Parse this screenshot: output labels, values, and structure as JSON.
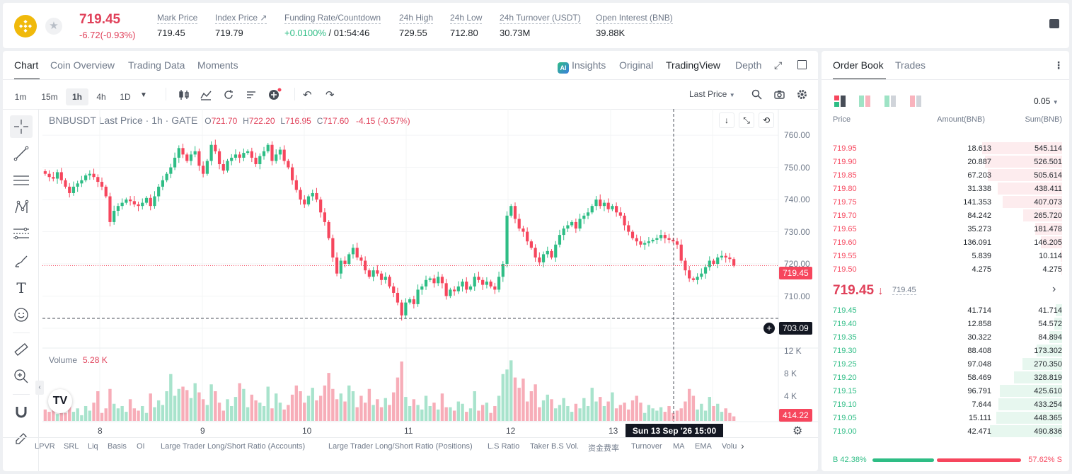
{
  "ticker": {
    "last_price": "719.45",
    "change": "-6.72(-0.93%)",
    "stats": [
      {
        "label": "Mark Price",
        "value": "719.45"
      },
      {
        "label": "Index Price ↗",
        "value": "719.79"
      },
      {
        "label": "Funding Rate/Countdown",
        "value_green": "+0.0100%",
        "value": " / 01:54:46"
      },
      {
        "label": "24h High",
        "value": "729.55"
      },
      {
        "label": "24h Low",
        "value": "712.80"
      },
      {
        "label": "24h Turnover (USDT)",
        "value": "30.73M"
      },
      {
        "label": "Open Interest (BNB)",
        "value": "39.88K"
      }
    ]
  },
  "chart_tabs": [
    "Chart",
    "Coin Overview",
    "Trading Data",
    "Moments"
  ],
  "view_tabs": {
    "insights": "Insights",
    "original": "Original",
    "tradingview": "TradingView",
    "depth": "Depth"
  },
  "timeframes": [
    "1m",
    "15m",
    "1h",
    "4h",
    "1D"
  ],
  "price_type": "Last Price",
  "legend": {
    "symbol": "BNBUSDT Last Price · 1h · GATE",
    "o_key": "O",
    "o": "721.70",
    "h_key": "H",
    "h": "722.20",
    "l_key": "L",
    "l": "716.95",
    "c_key": "C",
    "c": "717.60",
    "chg": "-4.15 (-0.57%)"
  },
  "price_axis": [
    "760.00",
    "750.00",
    "740.00",
    "730.00",
    "720.00",
    "710.00",
    "700.00"
  ],
  "price_tags": {
    "last": "719.45",
    "cross": "703.09",
    "volume": "414.22"
  },
  "volume_axis": [
    "12 K",
    "8 K",
    "4 K"
  ],
  "volume_legend": {
    "label": "Volume",
    "value": "5.28 K"
  },
  "time_axis": [
    "8",
    "9",
    "10",
    "11",
    "12",
    "13"
  ],
  "crosshair_date": "Sun 13 Sep '26   15:00",
  "indicators": [
    "LPVR",
    "SRL",
    "Liq",
    "Basis",
    "OI",
    "Large Trader Long/Short Ratio (Accounts)",
    "Large Trader Long/Short Ratio (Positions)",
    "L.S Ratio",
    "Taker B.S Vol.",
    "资金费率",
    "Turnover",
    "MA",
    "EMA",
    "Volu"
  ],
  "order_book": {
    "tabs": [
      "Order Book",
      "Trades"
    ],
    "precision": "0.05",
    "headers": {
      "price": "Price",
      "amount": "Amount(BNB)",
      "sum": "Sum(BNB)"
    },
    "asks": [
      {
        "price": "719.95",
        "amount": "18.613",
        "sum": "545.114"
      },
      {
        "price": "719.90",
        "amount": "20.887",
        "sum": "526.501"
      },
      {
        "price": "719.85",
        "amount": "67.203",
        "sum": "505.614"
      },
      {
        "price": "719.80",
        "amount": "31.338",
        "sum": "438.411"
      },
      {
        "price": "719.75",
        "amount": "141.353",
        "sum": "407.073"
      },
      {
        "price": "719.70",
        "amount": "84.242",
        "sum": "265.720"
      },
      {
        "price": "719.65",
        "amount": "35.273",
        "sum": "181.478"
      },
      {
        "price": "719.60",
        "amount": "136.091",
        "sum": "146.205"
      },
      {
        "price": "719.55",
        "amount": "5.839",
        "sum": "10.114"
      },
      {
        "price": "719.50",
        "amount": "4.275",
        "sum": "4.275"
      }
    ],
    "mid_price": "719.45",
    "mid_arrow": "↓",
    "mark_price": "719.45",
    "bids": [
      {
        "price": "719.45",
        "amount": "41.714",
        "sum": "41.714"
      },
      {
        "price": "719.40",
        "amount": "12.858",
        "sum": "54.572"
      },
      {
        "price": "719.35",
        "amount": "30.322",
        "sum": "84.894"
      },
      {
        "price": "719.30",
        "amount": "88.408",
        "sum": "173.302"
      },
      {
        "price": "719.25",
        "amount": "97.048",
        "sum": "270.350"
      },
      {
        "price": "719.20",
        "amount": "58.469",
        "sum": "328.819"
      },
      {
        "price": "719.15",
        "amount": "96.791",
        "sum": "425.610"
      },
      {
        "price": "719.10",
        "amount": "7.644",
        "sum": "433.254"
      },
      {
        "price": "719.05",
        "amount": "15.111",
        "sum": "448.365"
      },
      {
        "price": "719.00",
        "amount": "42.471",
        "sum": "490.836"
      }
    ],
    "buy_label": "B",
    "buy_pct": "42.38%",
    "sell_label": "S",
    "sell_pct": "57.62%",
    "buy_ratio": 0.4238
  },
  "colors": {
    "up": "#2ebd85",
    "down": "#f6465d",
    "accent": "#f0b90b"
  },
  "chart_data": {
    "type": "candlestick",
    "interval": "1h",
    "ylim": [
      700,
      762
    ],
    "closes": [
      748.0,
      747.0,
      746.5,
      748.5,
      746.0,
      744.0,
      742.0,
      744.0,
      745.0,
      746.0,
      747.5,
      748.0,
      747.0,
      745.5,
      744.0,
      741.0,
      733.0,
      736.5,
      738.0,
      739.0,
      740.0,
      739.5,
      738.5,
      738.0,
      739.0,
      740.5,
      738.0,
      741.0,
      744.0,
      746.0,
      748.0,
      750.0,
      753.0,
      756.0,
      754.0,
      752.0,
      754.0,
      755.0,
      750.5,
      748.0,
      752.0,
      757.0,
      755.0,
      751.0,
      749.0,
      752.0,
      753.0,
      754.0,
      753.0,
      754.5,
      755.0,
      753.0,
      751.0,
      753.5,
      755.0,
      757.0,
      752.0,
      754.0,
      755.5,
      752.0,
      750.0,
      746.0,
      743.0,
      740.0,
      738.5,
      741.0,
      742.0,
      740.0,
      736.0,
      733.0,
      728.0,
      722.0,
      717.0,
      721.0,
      720.0,
      723.0,
      725.0,
      722.0,
      721.0,
      718.0,
      716.0,
      718.0,
      717.0,
      715.0,
      716.0,
      713.0,
      711.0,
      708.0,
      704.0,
      708.0,
      709.0,
      707.5,
      712.0,
      713.0,
      715.0,
      715.5,
      714.0,
      716.0,
      714.0,
      710.0,
      712.0,
      711.5,
      713.0,
      714.5,
      712.0,
      713.0,
      716.0,
      715.0,
      713.5,
      714.5,
      713.0,
      712.0,
      716.0,
      720.0,
      735.0,
      738.0,
      734.0,
      731.0,
      730.0,
      727.0,
      725.0,
      722.0,
      720.5,
      723.0,
      724.0,
      722.0,
      726.0,
      729.0,
      731.0,
      732.0,
      733.0,
      731.0,
      734.0,
      735.0,
      736.0,
      738.0,
      740.0,
      738.0,
      739.0,
      737.0,
      738.0,
      736.0,
      735.0,
      732.0,
      730.0,
      728.0,
      727.0,
      726.0,
      726.5,
      727.0,
      727.5,
      728.0,
      729.0,
      728.0,
      727.5,
      727.0,
      726.0,
      721.0,
      718.0,
      715.5,
      715.0,
      716.0,
      717.0,
      719.0,
      721.0,
      720.0,
      722.0,
      722.5,
      722.0,
      721.5,
      719.5
    ],
    "volume_k": [
      2.0,
      1.6,
      2.4,
      1.2,
      2.8,
      1.4,
      3.4,
      1.6,
      2.2,
      1.0,
      2.6,
      1.8,
      3.2,
      5.2,
      1.4,
      2.2,
      5.6,
      3.0,
      2.2,
      2.6,
      1.6,
      3.8,
      2.2,
      1.8,
      2.6,
      1.4,
      4.8,
      2.4,
      3.6,
      2.8,
      5.2,
      8.2,
      4.4,
      5.6,
      6.0,
      5.4,
      4.0,
      6.6,
      5.0,
      3.8,
      2.8,
      6.4,
      5.2,
      3.2,
      1.8,
      3.8,
      2.6,
      4.2,
      6.6,
      5.6,
      2.4,
      4.6,
      3.6,
      3.2,
      2.6,
      6.0,
      2.2,
      4.8,
      3.2,
      2.0,
      2.8,
      4.6,
      6.2,
      5.2,
      3.2,
      4.4,
      5.8,
      3.6,
      4.4,
      6.2,
      8.4,
      5.6,
      3.8,
      4.8,
      3.4,
      6.2,
      5.2,
      2.4,
      4.4,
      3.2,
      5.6,
      2.8,
      3.8,
      2.4,
      4.0,
      2.8,
      5.0,
      7.6,
      10.4,
      4.2,
      2.6,
      3.8,
      2.8,
      2.0,
      4.4,
      2.6,
      3.2,
      2.0,
      4.8,
      2.4,
      2.4,
      1.8,
      3.4,
      3.0,
      1.6,
      2.2,
      5.2,
      1.8,
      2.8,
      3.2,
      1.4,
      2.6,
      4.4,
      8.2,
      9.0,
      10.6,
      7.6,
      5.8,
      7.4,
      3.4,
      5.2,
      6.4,
      2.4,
      3.6,
      4.6,
      3.8,
      2.2,
      2.8,
      4.0,
      2.6,
      1.6,
      3.0,
      2.2,
      4.0,
      2.6,
      5.8,
      3.4,
      4.2,
      2.6,
      3.4,
      5.0,
      2.2,
      2.8,
      3.2,
      2.0,
      3.6,
      4.4,
      3.2,
      1.4,
      2.8,
      2.2,
      1.8,
      2.4,
      1.6,
      2.6,
      1.4,
      1.8,
      2.2,
      3.4,
      5.6,
      4.4,
      2.0,
      3.0,
      1.8,
      4.2,
      2.6,
      3.0,
      1.6,
      2.2,
      1.4,
      0.8,
      0.6
    ]
  }
}
